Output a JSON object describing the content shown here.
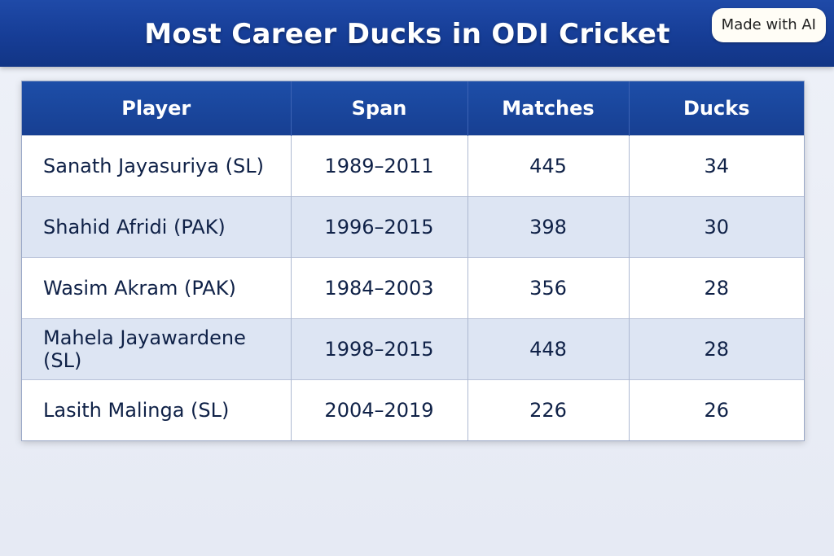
{
  "title": "Most Career Ducks in ODI Cricket",
  "badge": "Made with AI",
  "columns": [
    "Player",
    "Span",
    "Matches",
    "Ducks"
  ],
  "rows": [
    {
      "player": "Sanath Jayasuriya (SL)",
      "span": "1989–2011",
      "matches": "445",
      "ducks": "34"
    },
    {
      "player": "Shahid Afridi (PAK)",
      "span": "1996–2015",
      "matches": "398",
      "ducks": "30"
    },
    {
      "player": "Wasim Akram (PAK)",
      "span": "1984–2003",
      "matches": "356",
      "ducks": "28"
    },
    {
      "player": "Mahela Jayawardene (SL)",
      "span": "1998–2015",
      "matches": "448",
      "ducks": "28"
    },
    {
      "player": "Lasith Malinga (SL)",
      "span": "2004–2019",
      "matches": "226",
      "ducks": "26"
    }
  ],
  "colors": {
    "header": "#1a46a0",
    "row_alt": "#dde5f3",
    "text": "#0f2147"
  }
}
